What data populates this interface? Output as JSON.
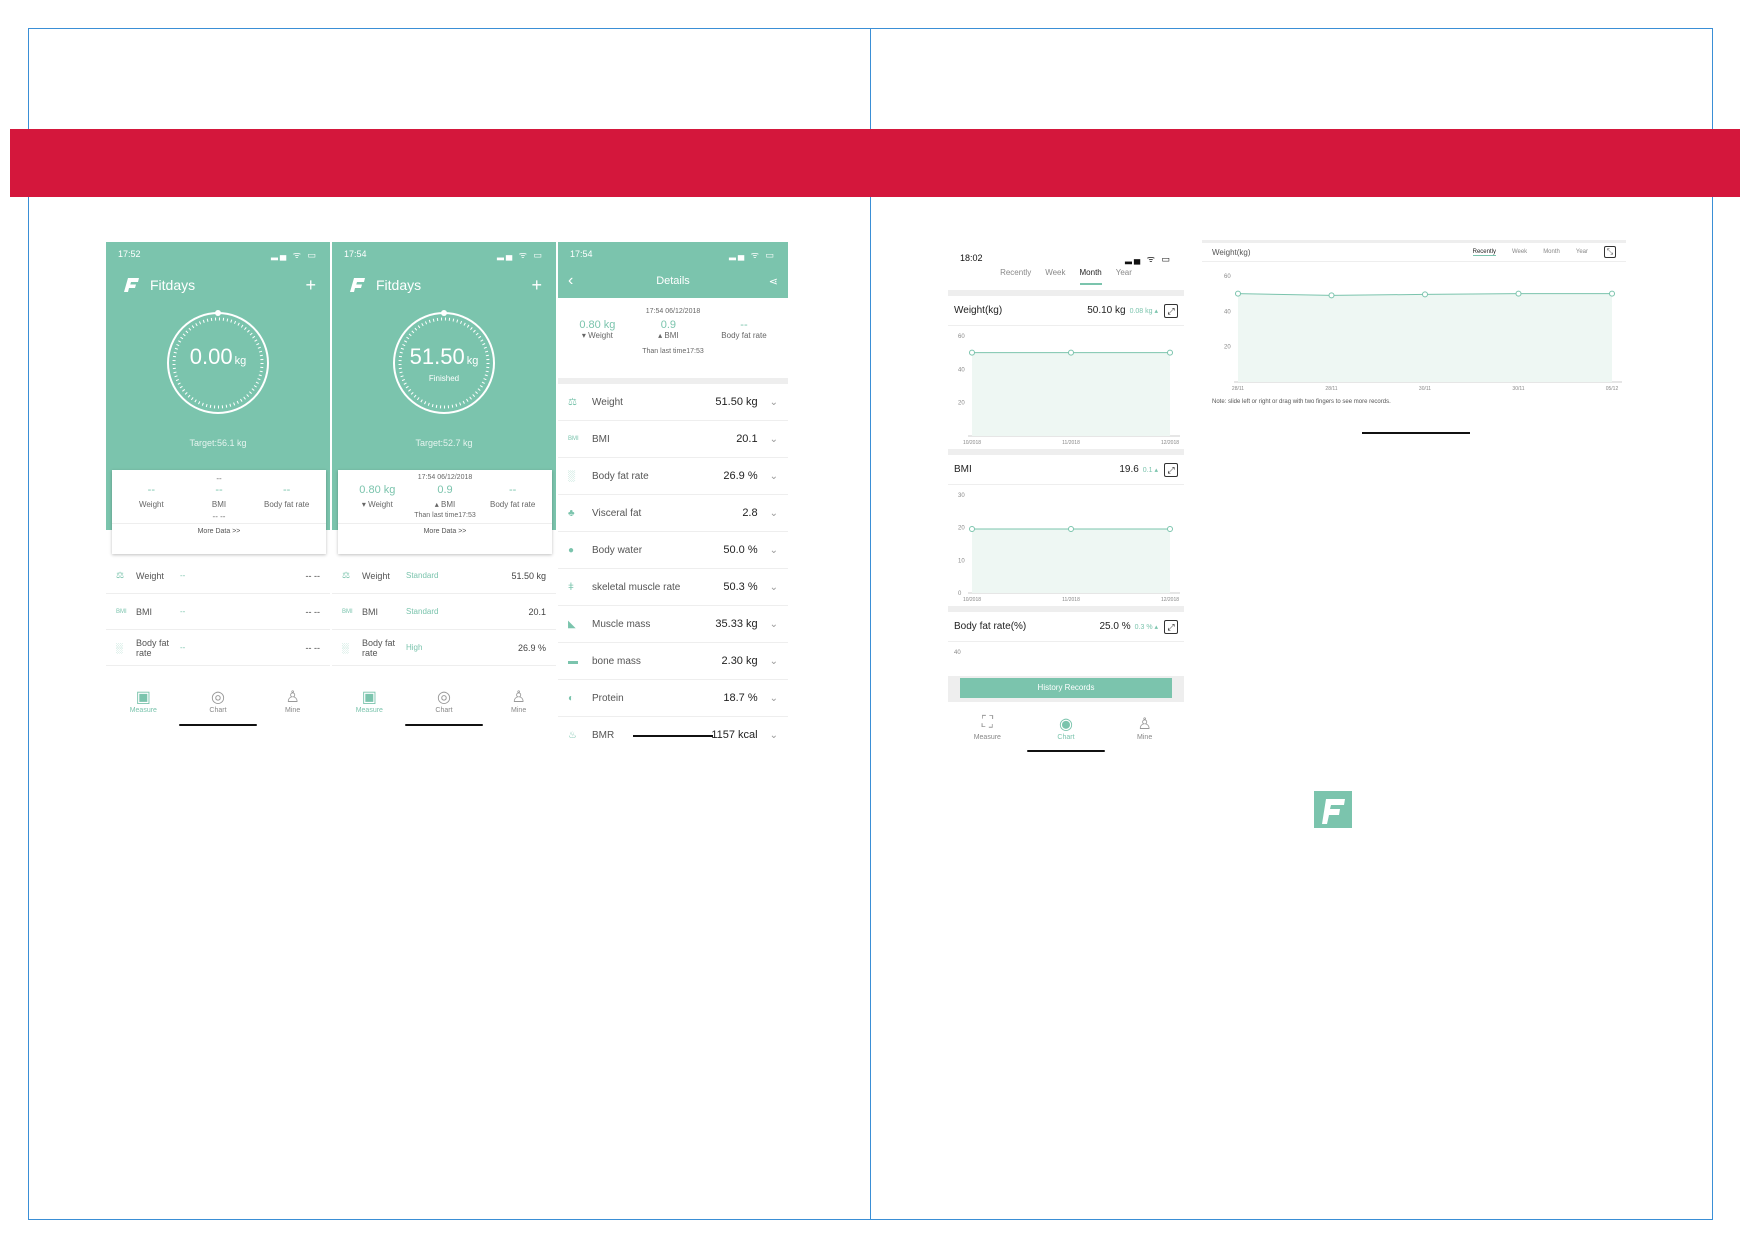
{
  "brand": {
    "accent": "#7bc4ad",
    "band": "#d4173c"
  },
  "s1": {
    "time": "17:52",
    "status": "▂▄ ᯤ ▭",
    "app": "Fitdays",
    "plus": "+",
    "ring_value": "0.00",
    "unit": "kg",
    "target": "Target:56.1 kg",
    "card": {
      "top": "--",
      "cols": [
        {
          "val": "--",
          "label": "Weight"
        },
        {
          "val": "--",
          "label": "BMI"
        },
        {
          "val": "--",
          "label": "Body fat rate"
        }
      ],
      "mid": "-- --",
      "more": "More Data >>"
    },
    "rows": [
      {
        "icon": "⚖",
        "name": "Weight",
        "status": "--",
        "value": "-- --"
      },
      {
        "icon": "BMI",
        "name": "BMI",
        "status": "--",
        "value": "-- --"
      },
      {
        "icon": "░",
        "name": "Body fat rate",
        "status": "--",
        "value": "-- --"
      }
    ],
    "tabs": [
      {
        "icon": "▣",
        "label": "Measure"
      },
      {
        "icon": "◎",
        "label": "Chart"
      },
      {
        "icon": "♙",
        "label": "Mine"
      }
    ]
  },
  "s2": {
    "time": "17:54",
    "status": "▂▄ ᯤ ▭",
    "app": "Fitdays",
    "plus": "+",
    "ring_value": "51.50",
    "unit": "kg",
    "ring_sub": "Finished",
    "target": "Target:52.7 kg",
    "card": {
      "top": "17:54 06/12/2018",
      "cols": [
        {
          "val": "0.80 kg",
          "label": "▾ Weight"
        },
        {
          "val": "0.9",
          "label": "▴ BMI"
        },
        {
          "val": "--",
          "label": "Body fat rate"
        }
      ],
      "mid": "Than last time17:53",
      "more": "More Data >>"
    },
    "rows": [
      {
        "icon": "⚖",
        "name": "Weight",
        "status": "Standard",
        "value": "51.50 kg"
      },
      {
        "icon": "BMI",
        "name": "BMI",
        "status": "Standard",
        "value": "20.1"
      },
      {
        "icon": "░",
        "name": "Body fat rate",
        "status": "High",
        "value": "26.9 %"
      }
    ],
    "tabs": [
      {
        "icon": "▣",
        "label": "Measure"
      },
      {
        "icon": "◎",
        "label": "Chart"
      },
      {
        "icon": "♙",
        "label": "Mine"
      }
    ]
  },
  "s3": {
    "time": "17:54",
    "status": "▂▄ ᯤ ▭",
    "title": "Details",
    "back": "‹",
    "share": "⋖",
    "head": {
      "time": "17:54 06/12/2018",
      "cols": [
        {
          "val": "0.80 kg",
          "label": "▾ Weight"
        },
        {
          "val": "0.9",
          "label": "▴ BMI"
        },
        {
          "val": "--",
          "label": "Body fat rate"
        }
      ],
      "note": "Than last time17:53"
    },
    "rows": [
      {
        "icon": "⚖",
        "name": "Weight",
        "value": "51.50 kg"
      },
      {
        "icon": "BMI",
        "name": "BMI",
        "value": "20.1"
      },
      {
        "icon": "░",
        "name": "Body fat rate",
        "value": "26.9 %"
      },
      {
        "icon": "♣",
        "name": "Visceral fat",
        "value": "2.8"
      },
      {
        "icon": "●",
        "name": "Body water",
        "value": "50.0 %"
      },
      {
        "icon": "ǂ",
        "name": "skeletal muscle rate",
        "value": "50.3 %"
      },
      {
        "icon": "◣",
        "name": "Muscle mass",
        "value": "35.33 kg"
      },
      {
        "icon": "▬",
        "name": "bone mass",
        "value": "2.30 kg"
      },
      {
        "icon": "◐",
        "name": "Protein",
        "value": "18.7 %"
      },
      {
        "icon": "♨",
        "name": "BMR",
        "value": "1157 kcal"
      }
    ],
    "chev": "⌄"
  },
  "s4": {
    "time": "18:02",
    "status": "▂▄ ᯤ ▭",
    "tabs": [
      "Recently",
      "Week",
      "Month",
      "Year"
    ],
    "panels": [
      {
        "name": "Weight(kg)",
        "value": "50.10 kg",
        "delta": "0.08 kg ▴",
        "yticks": [
          "60",
          "40",
          "20"
        ],
        "xticks": [
          "10/2018",
          "11/2018",
          "12/2018"
        ]
      },
      {
        "name": "BMI",
        "value": "19.6",
        "delta": "0.1 ▴",
        "yticks": [
          "30",
          "20",
          "10",
          "0"
        ],
        "xticks": [
          "10/2018",
          "11/2018",
          "12/2018"
        ]
      },
      {
        "name": "Body fat rate(%)",
        "value": "25.0 %",
        "delta": "0.3 % ▴",
        "yticks": [
          "40"
        ],
        "xticks": []
      }
    ],
    "expand": "⤢",
    "history": "History Records",
    "bottom_tabs": [
      {
        "icon": "⛶",
        "label": "Measure"
      },
      {
        "icon": "◉",
        "label": "Chart"
      },
      {
        "icon": "♙",
        "label": "Mine"
      }
    ]
  },
  "s5": {
    "title": "Weight(kg)",
    "tabs": [
      "Recently",
      "Week",
      "Month",
      "Year"
    ],
    "expand": "⤡",
    "yticks": [
      "60",
      "40",
      "20"
    ],
    "xticks": [
      "28/11",
      "28/11",
      "30/11",
      "30/11",
      "05/12"
    ],
    "note": "Note: slide left or right or drag with two fingers to see more records."
  },
  "chart_data": [
    {
      "type": "area",
      "title": "Weight(kg)",
      "x": [
        "10/2018",
        "11/2018",
        "12/2018"
      ],
      "series": [
        {
          "values": [
            50,
            50,
            50
          ]
        }
      ],
      "ylim": [
        0,
        60
      ]
    },
    {
      "type": "area",
      "title": "BMI",
      "x": [
        "10/2018",
        "11/2018",
        "12/2018"
      ],
      "series": [
        {
          "values": [
            19.6,
            19.6,
            19.6
          ]
        }
      ],
      "ylim": [
        0,
        30
      ]
    },
    {
      "type": "area",
      "title": "Weight(kg)",
      "x": [
        "28/11",
        "28/11",
        "30/11",
        "30/11",
        "05/12"
      ],
      "series": [
        {
          "values": [
            50,
            49,
            49.6,
            50,
            50
          ]
        }
      ],
      "ylim": [
        0,
        60
      ]
    }
  ]
}
